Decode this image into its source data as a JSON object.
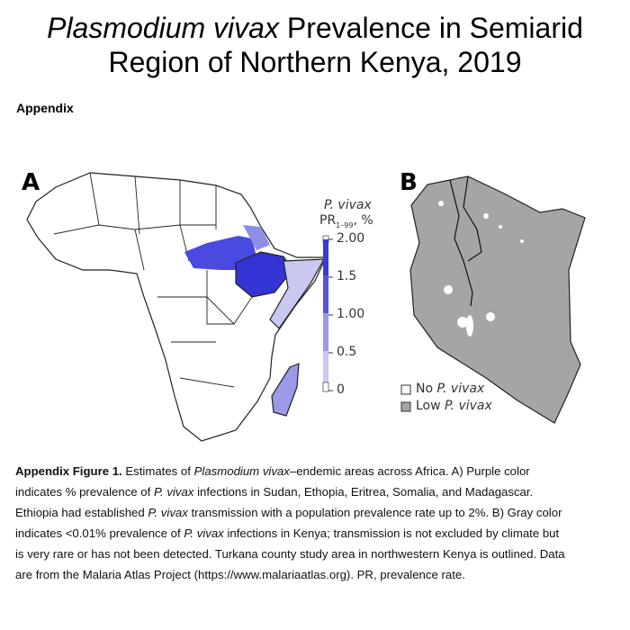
{
  "title": {
    "line1_italic": "Plasmodium vivax",
    "line1_rest": " Prevalence in Semiarid",
    "line2": "Region of Northern Kenya, 2019"
  },
  "section": "Appendix",
  "figure": {
    "panel_a_label": "A",
    "panel_b_label": "B",
    "legend_a": {
      "title_italic": "P. vivax",
      "title_pr": "PR",
      "title_sub": "1–99",
      "title_unit": ", %",
      "ticks": [
        "2.00",
        "1.5",
        "1.00",
        "0.5",
        "0"
      ],
      "colors": [
        "#3a3ad8",
        "#5555e0",
        "#9a9ae8",
        "#c8c8f0"
      ]
    },
    "legend_b": [
      {
        "prefix": "No ",
        "italic": "P. vivax",
        "color": "#ffffff"
      },
      {
        "prefix": "Low ",
        "italic": "P. vivax",
        "color": "#a5a5a5"
      }
    ]
  },
  "caption": {
    "l1": [
      "Appendix Figure 1.",
      " Estimates of ",
      "Plasmodium vivax",
      "–endemic areas across Africa. A) Purple color"
    ],
    "l2": [
      "indicates % prevalence of ",
      "P. vivax",
      " infections in Sudan, Ethopia, Eritrea, Somalia, and Madagascar."
    ],
    "l3": [
      "Ethiopia had established ",
      "P. vivax",
      " transmission with a population prevalence rate up to 2%. B) Gray color"
    ],
    "l4": [
      "indicates <0.01% prevalence of ",
      "P. vivax",
      " infections in Kenya; transmission is not excluded by climate but"
    ],
    "l5": [
      "is very rare or has not been detected. Turkana county study area in northwestern Kenya is outlined. Data"
    ],
    "l6": [
      "are from the Malaria Atlas Project (https://www.malariaatlas.org). PR, prevalence rate."
    ]
  }
}
